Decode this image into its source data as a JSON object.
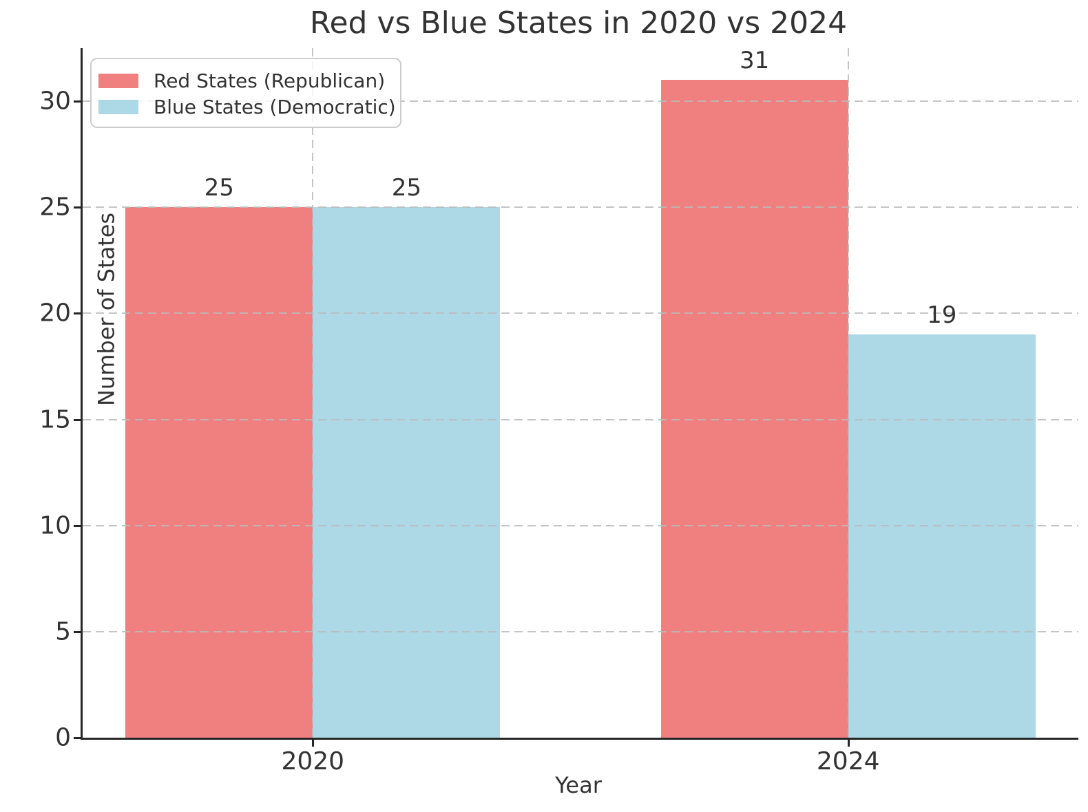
{
  "chart_data": {
    "type": "bar",
    "title": "Red vs Blue States in 2020 vs 2024",
    "xlabel": "Year",
    "ylabel": "Number of States",
    "categories": [
      "2020",
      "2024"
    ],
    "series": [
      {
        "name": "Red States (Republican)",
        "color": "#F08080",
        "values": [
          25,
          31
        ]
      },
      {
        "name": "Blue States (Democratic)",
        "color": "#ADD8E6",
        "values": [
          25,
          19
        ]
      }
    ],
    "yticks": [
      0,
      5,
      10,
      15,
      20,
      25,
      30
    ],
    "ylim": [
      0,
      32.5
    ],
    "xlim": [
      -0.43,
      1.43
    ],
    "bar_width": 0.35,
    "grid": true,
    "grid_style": "dashed",
    "legend_position": "upper left",
    "colors": {
      "text": "#333333",
      "spine": "#262626",
      "grid": "#bbbbbb",
      "legend_border": "#cccccc",
      "background": "#ffffff"
    }
  }
}
